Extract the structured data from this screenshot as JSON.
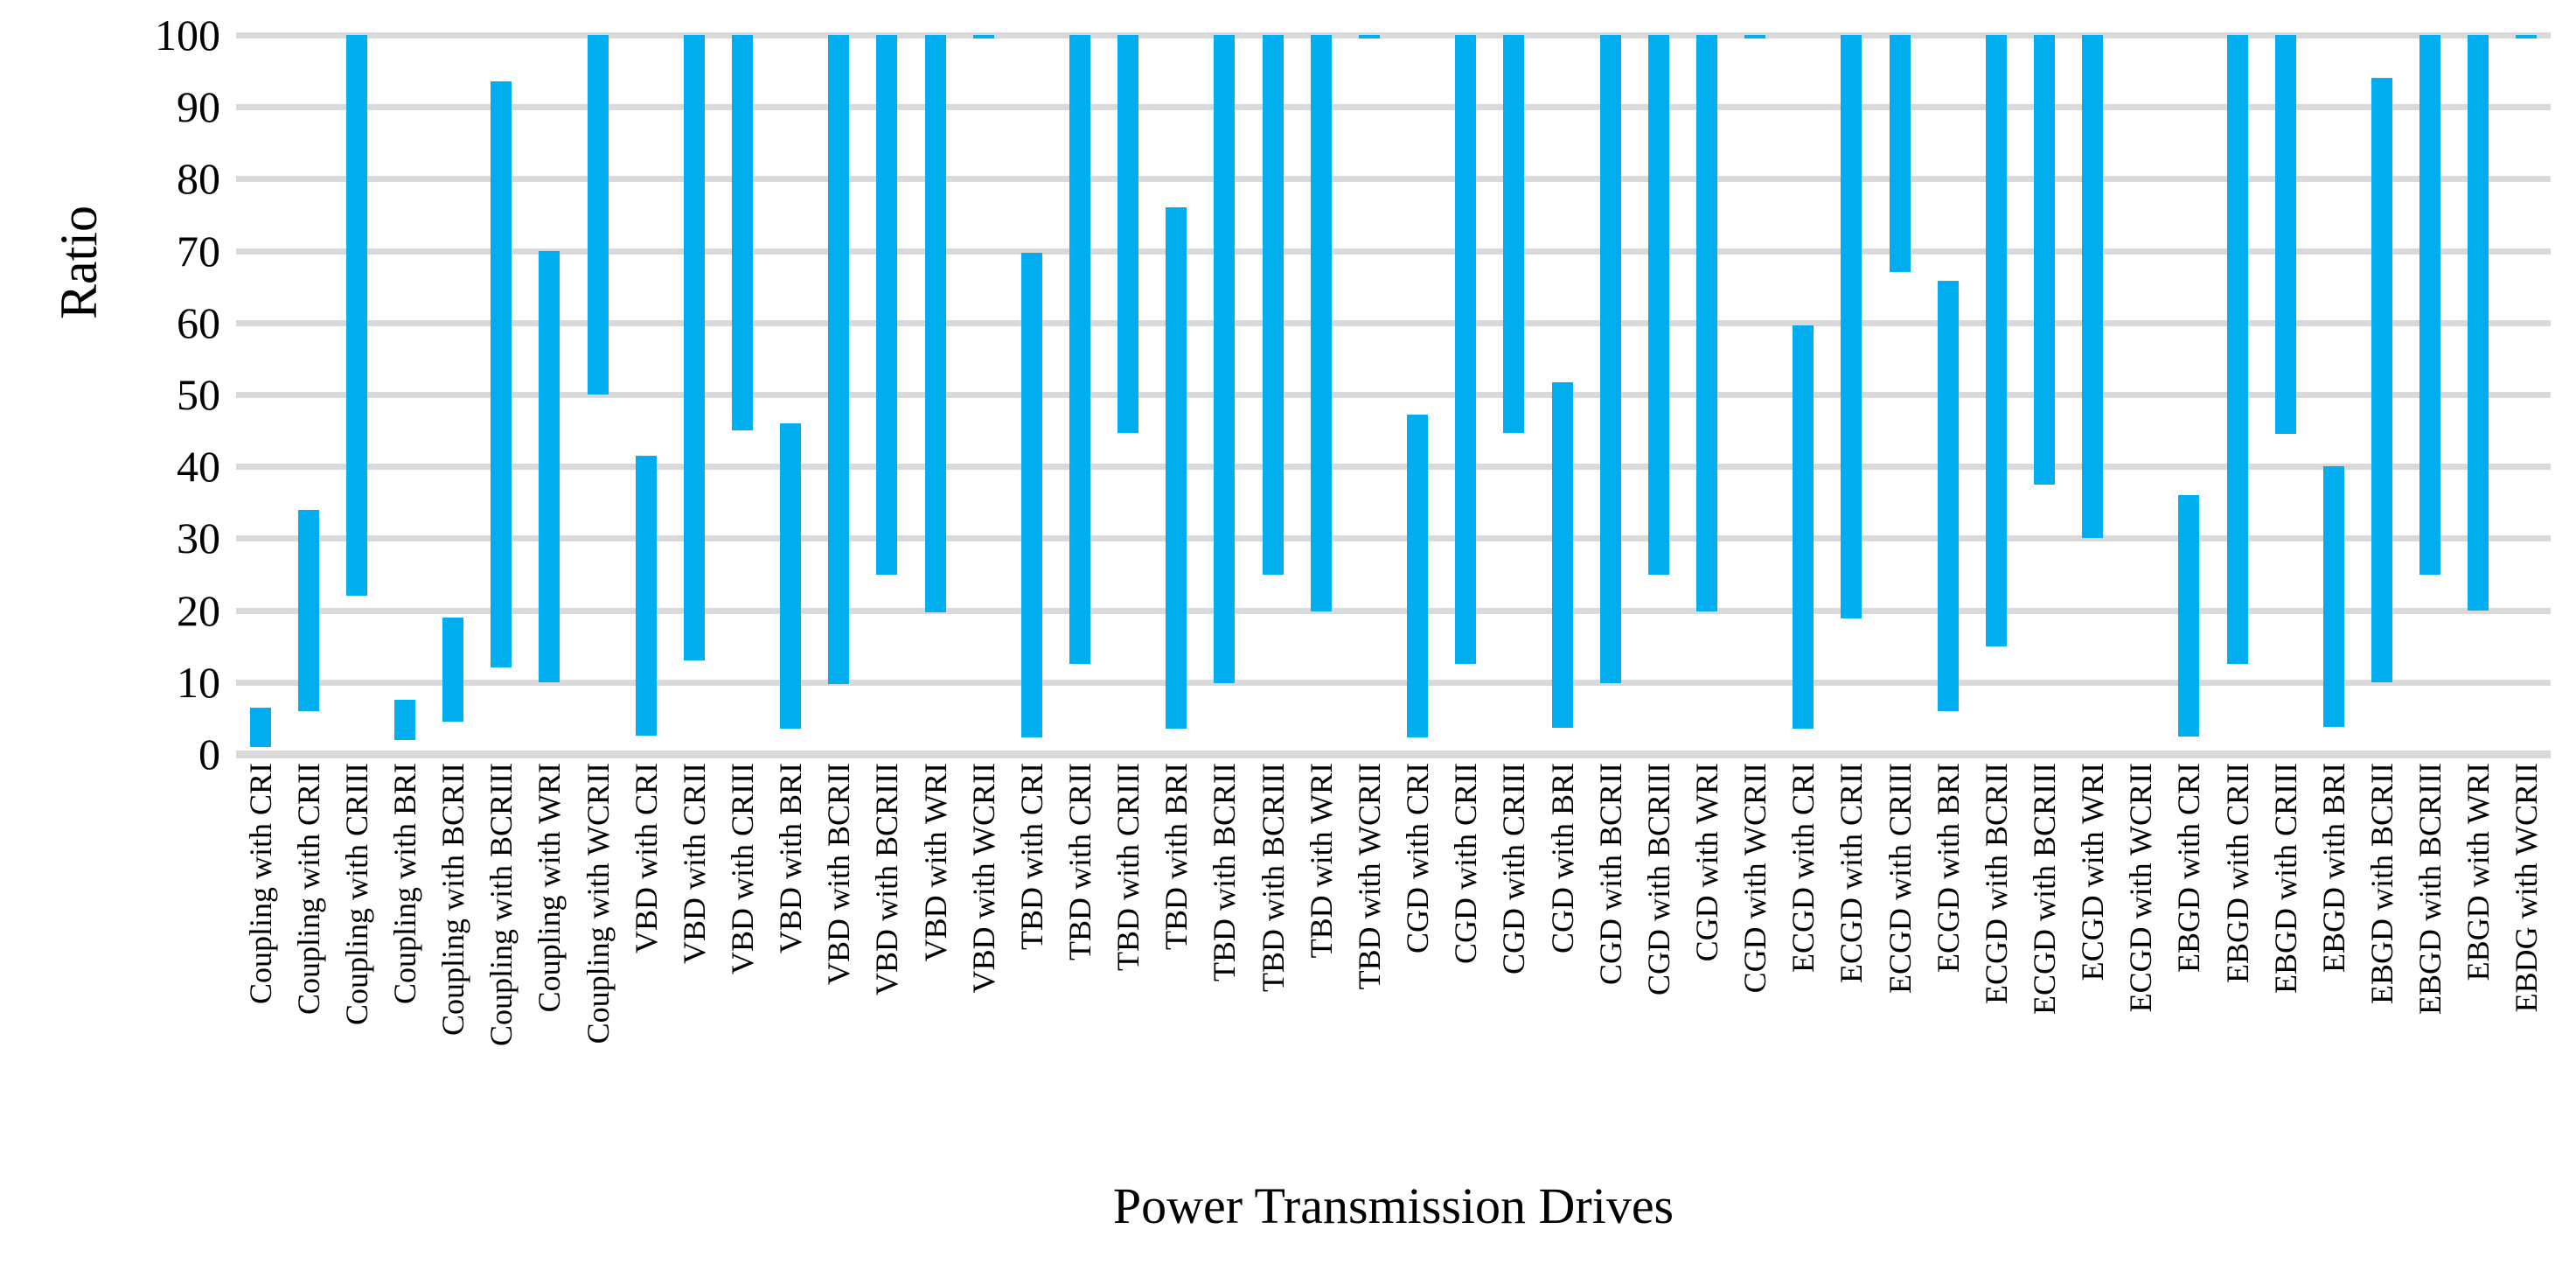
{
  "chart_data": {
    "type": "bar",
    "variant": "floating-range-columns",
    "title": "",
    "xlabel": "Power Transmission Drives",
    "ylabel": "Ratio",
    "ylim": [
      0,
      100
    ],
    "yticks": [
      0,
      10,
      20,
      30,
      40,
      50,
      60,
      70,
      80,
      90,
      100
    ],
    "grid": true,
    "legend_position": "none",
    "bar_color": "#00AEEF",
    "gridline_color": "#D9D9D9",
    "axis_text_color": "#000000",
    "bars": [
      {
        "label": "Coupling with CRI",
        "min": 1,
        "max": 6.5
      },
      {
        "label": "Coupling with CRII",
        "min": 6,
        "max": 34
      },
      {
        "label": "Coupling with CRIII",
        "min": 22,
        "max": 100
      },
      {
        "label": "Coupling with BRI",
        "min": 2,
        "max": 7.5
      },
      {
        "label": "Coupling with BCRII",
        "min": 4.5,
        "max": 19
      },
      {
        "label": "Coupling with BCRIII",
        "min": 12,
        "max": 93.5
      },
      {
        "label": "Coupling with WRI",
        "min": 10,
        "max": 70
      },
      {
        "label": "Coupling with WCRII",
        "min": 50,
        "max": 100
      },
      {
        "label": "VBD with CRI",
        "min": 2.5,
        "max": 41.5
      },
      {
        "label": "VBD with CRII",
        "min": 13,
        "max": 100
      },
      {
        "label": "VBD with CRIII",
        "min": 45,
        "max": 100
      },
      {
        "label": "VBD with BRI",
        "min": 3.5,
        "max": 46
      },
      {
        "label": "VBD with BCRII",
        "min": 9.7,
        "max": 100
      },
      {
        "label": "VBD with BCRIII",
        "min": 25,
        "max": 100
      },
      {
        "label": "VBD with WRI",
        "min": 19.7,
        "max": 100
      },
      {
        "label": "VBD with WCRII",
        "min": 99.5,
        "max": 100
      },
      {
        "label": "TBD with CRI",
        "min": 2.3,
        "max": 69.7
      },
      {
        "label": "TBD with CRII",
        "min": 12.5,
        "max": 100
      },
      {
        "label": "TBD with CRIII",
        "min": 44.6,
        "max": 100
      },
      {
        "label": "TBD with BRI",
        "min": 3.5,
        "max": 76
      },
      {
        "label": "TBD with BCRII",
        "min": 9.8,
        "max": 100
      },
      {
        "label": "TBD with BCRIII",
        "min": 25,
        "max": 100
      },
      {
        "label": "TBD with WRI",
        "min": 19.8,
        "max": 100
      },
      {
        "label": "TBD with WCRII",
        "min": 99.5,
        "max": 100
      },
      {
        "label": "CGD with CRI",
        "min": 2.3,
        "max": 47.2
      },
      {
        "label": "CGD with CRII",
        "min": 12.5,
        "max": 100
      },
      {
        "label": "CGD with CRIII",
        "min": 44.6,
        "max": 100
      },
      {
        "label": "CGD with BRI",
        "min": 3.7,
        "max": 51.7
      },
      {
        "label": "CGD with BCRII",
        "min": 9.8,
        "max": 100
      },
      {
        "label": "CGD with BCRIII",
        "min": 25,
        "max": 100
      },
      {
        "label": "CGD with WRI",
        "min": 19.8,
        "max": 100
      },
      {
        "label": "CGD with WCRII",
        "min": 99.5,
        "max": 100
      },
      {
        "label": "ECGD with CRI",
        "min": 3.5,
        "max": 59.6
      },
      {
        "label": "ECGD with CRII",
        "min": 18.8,
        "max": 100
      },
      {
        "label": "ECGD with CRIII",
        "min": 67,
        "max": 100
      },
      {
        "label": "ECGD with BRI",
        "min": 6,
        "max": 65.8
      },
      {
        "label": "ECGD with BCRII",
        "min": 15,
        "max": 100
      },
      {
        "label": "ECGD with BCRIII",
        "min": 37.5,
        "max": 100
      },
      {
        "label": "ECGD with WRI",
        "min": 30,
        "max": 100
      },
      {
        "label": "ECGD with WCRII",
        "min": 100,
        "max": 100
      },
      {
        "label": "EBGD with CRI",
        "min": 2.4,
        "max": 36
      },
      {
        "label": "EBGD with CRII",
        "min": 12.5,
        "max": 100
      },
      {
        "label": "EBGD with CRIII",
        "min": 44.5,
        "max": 100
      },
      {
        "label": "EBGD with BRI",
        "min": 3.8,
        "max": 40
      },
      {
        "label": "EBGD with BCRII",
        "min": 10,
        "max": 94
      },
      {
        "label": "EBGD with BCRIII",
        "min": 25,
        "max": 100
      },
      {
        "label": "EBGD with WRI",
        "min": 20,
        "max": 100
      },
      {
        "label": "EBDG with WCRII",
        "min": 99.5,
        "max": 100
      }
    ]
  }
}
